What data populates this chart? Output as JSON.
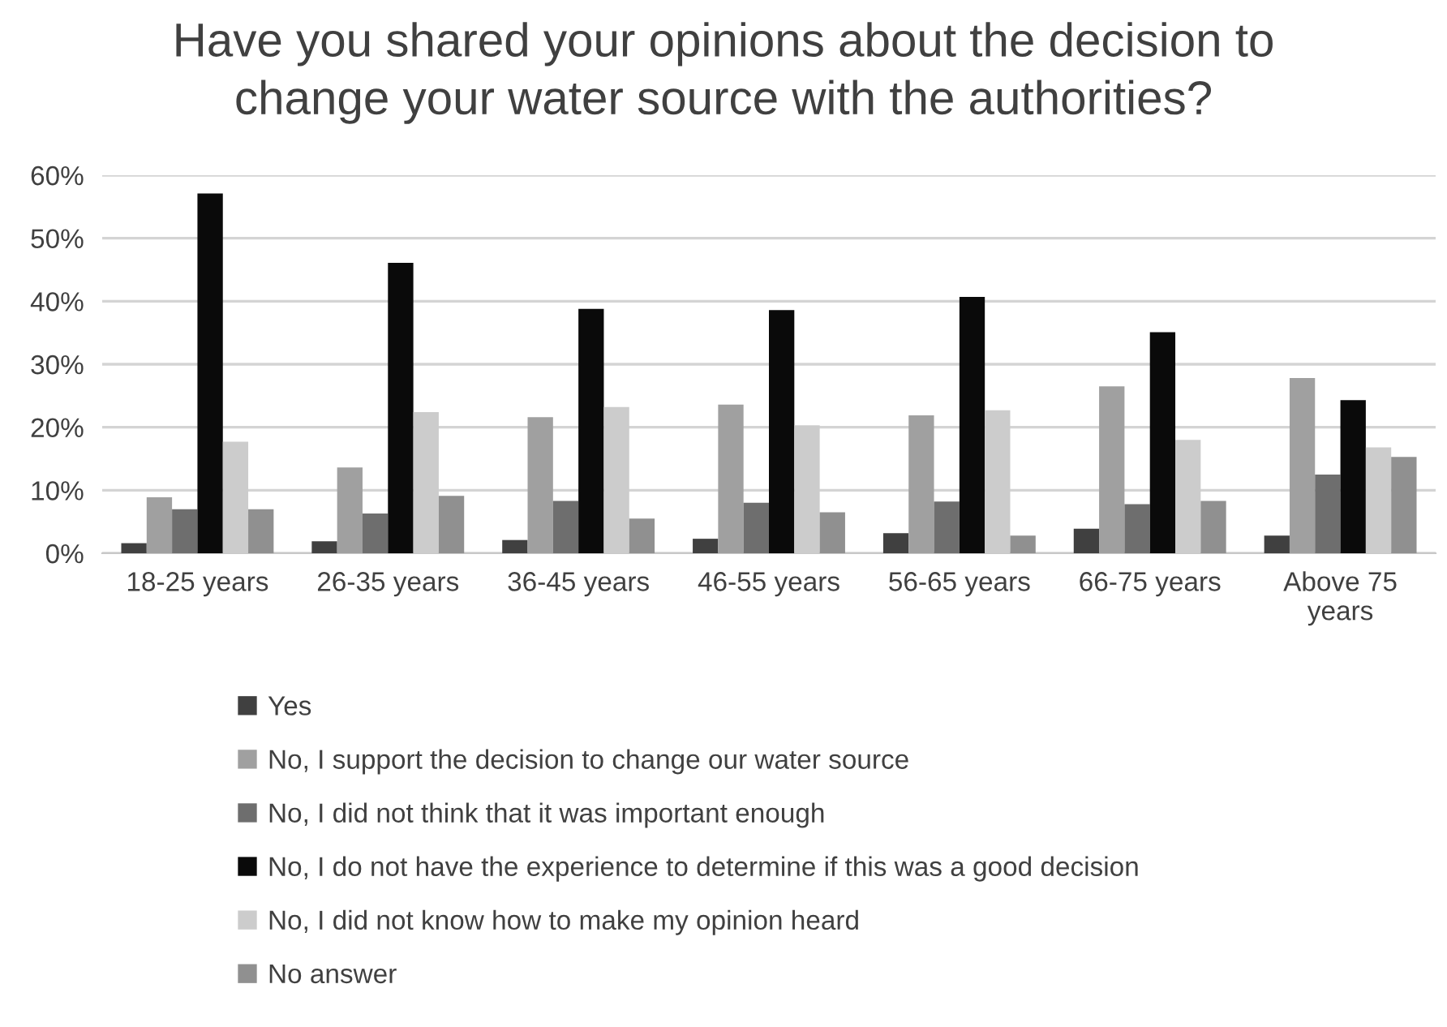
{
  "chart_data": {
    "type": "bar",
    "title": "Have you shared your opinions about the decision to\nchange your water source with the authorities?",
    "categories": [
      "18-25 years",
      "26-35 years",
      "36-45 years",
      "46-55 years",
      "56-65 years",
      "66-75 years",
      "Above 75\nyears"
    ],
    "series": [
      {
        "name": "Yes",
        "color": "#404040",
        "values": [
          1.6,
          1.9,
          2.1,
          2.3,
          3.2,
          3.9,
          2.8
        ]
      },
      {
        "name": "No, I support the decision to change our water source",
        "color": "#a0a0a0",
        "values": [
          8.9,
          13.6,
          21.6,
          23.6,
          21.9,
          26.5,
          27.8
        ]
      },
      {
        "name": "No, I did not think that it was important enough",
        "color": "#6e6e6e",
        "values": [
          7.0,
          6.3,
          8.3,
          8.0,
          8.2,
          7.8,
          12.5
        ]
      },
      {
        "name": "No, I do not have the experience to determine if this was a good decision",
        "color": "#0a0a0a",
        "values": [
          57.1,
          46.1,
          38.8,
          38.6,
          40.7,
          35.1,
          24.3
        ]
      },
      {
        "name": "No, I did not know how to make my opinion heard",
        "color": "#cccccc",
        "values": [
          17.7,
          22.4,
          23.2,
          20.3,
          22.7,
          18.0,
          16.8
        ]
      },
      {
        "name": "No answer",
        "color": "#909090",
        "values": [
          7.0,
          9.1,
          5.5,
          6.5,
          2.8,
          8.3,
          15.3
        ]
      }
    ],
    "ylim": [
      0,
      60
    ],
    "yticks": [
      {
        "value": 0,
        "label": "0%"
      },
      {
        "value": 10,
        "label": "10%"
      },
      {
        "value": 20,
        "label": "20%"
      },
      {
        "value": 30,
        "label": "30%"
      },
      {
        "value": 40,
        "label": "40%"
      },
      {
        "value": 50,
        "label": "50%"
      },
      {
        "value": 60,
        "label": "60%"
      }
    ],
    "grid": "y",
    "legend": "bottom"
  }
}
